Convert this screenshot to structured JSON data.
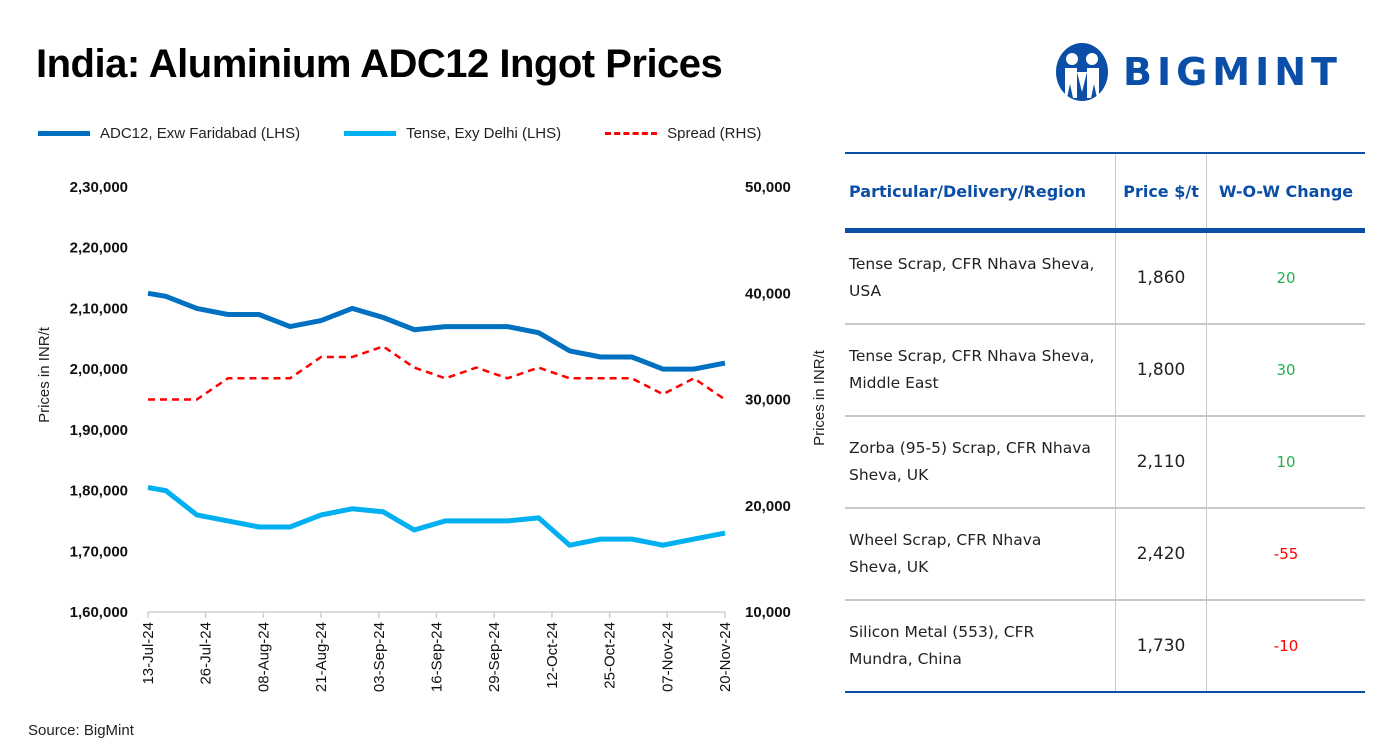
{
  "title": "India: Aluminium ADC12 Ingot Prices",
  "logo": {
    "text": "BIGMINT",
    "color": "#0a4ea8"
  },
  "source": "Source: BigMint",
  "chart_data": {
    "type": "line",
    "title": "India: Aluminium ADC12 Ingot Prices",
    "x": [
      "13-Jul-24",
      "17-Jul-24",
      "24-Jul-24",
      "31-Jul-24",
      "07-Aug-24",
      "14-Aug-24",
      "21-Aug-24",
      "28-Aug-24",
      "04-Sep-24",
      "11-Sep-24",
      "18-Sep-24",
      "25-Sep-24",
      "02-Oct-24",
      "09-Oct-24",
      "16-Oct-24",
      "23-Oct-24",
      "30-Oct-24",
      "06-Nov-24",
      "13-Nov-24",
      "20-Nov-24"
    ],
    "x_tick_labels": [
      "13-Jul-24",
      "26-Jul-24",
      "08-Aug-24",
      "21-Aug-24",
      "03-Sep-24",
      "16-Sep-24",
      "29-Sep-24",
      "12-Oct-24",
      "25-Oct-24",
      "07-Nov-24",
      "20-Nov-24"
    ],
    "ylabel_left": "Prices in INR/t",
    "ylabel_right": "Prices in INR/t",
    "ylim_left": [
      160000,
      230000
    ],
    "ylim_right": [
      10000,
      50000
    ],
    "y_ticks_left": [
      "1,60,000",
      "1,70,000",
      "1,80,000",
      "1,90,000",
      "2,00,000",
      "2,10,000",
      "2,20,000",
      "2,30,000"
    ],
    "y_ticks_right": [
      "10,000",
      "20,000",
      "30,000",
      "40,000",
      "50,000"
    ],
    "grid": false,
    "legend": "top",
    "series": [
      {
        "name": "ADC12, Exw Faridabad (LHS)",
        "axis": "left",
        "color": "#0070c0",
        "style": "solid",
        "values": [
          212500,
          212000,
          210000,
          209000,
          209000,
          207000,
          208000,
          210000,
          208500,
          206500,
          207000,
          207000,
          207000,
          206000,
          203000,
          202000,
          202000,
          200000,
          200000,
          201000
        ]
      },
      {
        "name": "Tense, Exy Delhi (LHS)",
        "axis": "left",
        "color": "#00b0f0",
        "style": "solid",
        "values": [
          180500,
          180000,
          176000,
          175000,
          174000,
          174000,
          176000,
          177000,
          176500,
          173500,
          175000,
          175000,
          175000,
          175500,
          171000,
          172000,
          172000,
          171000,
          172000,
          173000
        ]
      },
      {
        "name": "Spread (RHS)",
        "axis": "right",
        "color": "#ff0000",
        "style": "dashed",
        "values": [
          30000,
          30000,
          30000,
          32000,
          32000,
          32000,
          34000,
          34000,
          35000,
          33000,
          32000,
          33000,
          32000,
          33000,
          32000,
          32000,
          32000,
          30500,
          32000,
          30000
        ]
      }
    ]
  },
  "table": {
    "headers": [
      "Particular/Delivery/Region",
      "Price $/t",
      "W-O-W Change"
    ],
    "rows": [
      {
        "desc": " Tense Scrap, CFR Nhava Sheva, USA",
        "price": "1,860",
        "change": "20",
        "dir": "up"
      },
      {
        "desc": "Tense Scrap, CFR Nhava Sheva, Middle East",
        "price": "1,800",
        "change": "30",
        "dir": "up"
      },
      {
        "desc": "Zorba (95-5) Scrap, CFR Nhava Sheva, UK",
        "price": "2,110",
        "change": "10",
        "dir": "up"
      },
      {
        "desc": "Wheel Scrap, CFR Nhava Sheva, UK",
        "price": "2,420",
        "change": "-55",
        "dir": "down"
      },
      {
        "desc": "Silicon Metal (553), CFR Mundra, China",
        "price": "1,730",
        "change": "-10",
        "dir": "down"
      }
    ],
    "colors": {
      "up": "#22b14c",
      "down": "#ff0000"
    }
  }
}
